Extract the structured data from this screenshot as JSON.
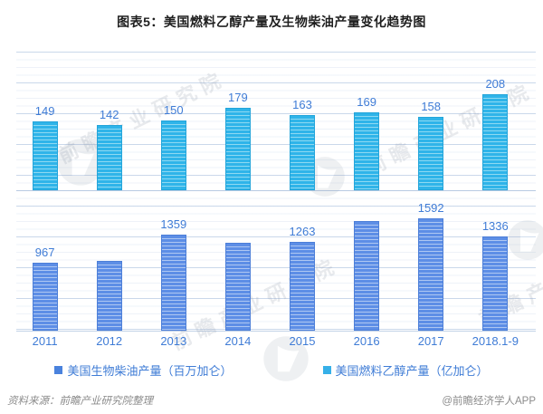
{
  "title": "图表5：美国燃料乙醇产量及生物柴油产量变化趋势图",
  "watermark": {
    "text": "前瞻产业研究院",
    "logo_name": "qianzhan-logo"
  },
  "legend": [
    {
      "label": "美国生物柴油产量（百万加仑）",
      "color": "#4a82dd"
    },
    {
      "label": "美国燃料乙醇产量（亿加仑）",
      "color": "#36b0e8"
    }
  ],
  "footer": {
    "source": "资料来源：前瞻产业研究院整理",
    "credit": "@前瞻经济学人APP"
  },
  "chart_data": {
    "type": "bar",
    "title": "图表5：美国燃料乙醇产量及生物柴油产量变化趋势图",
    "categories": [
      "2011",
      "2012",
      "2013",
      "2014",
      "2015",
      "2016",
      "2017",
      "2018.1-9"
    ],
    "series": [
      {
        "name": "美国燃料乙醇产量（亿加仑）",
        "panel": "top",
        "unit": "亿加仑",
        "values": [
          149,
          142,
          150,
          179,
          163,
          169,
          158,
          208
        ],
        "labels": [
          "149",
          "142",
          "150",
          "179",
          "163",
          "169",
          "158",
          "208"
        ],
        "ylim": [
          0,
          300
        ],
        "color": "#2fb4e9",
        "stripe_color": "#8ed9f2",
        "border_color": "#24a5da"
      },
      {
        "name": "美国生物柴油产量（百万加仑）",
        "panel": "bottom",
        "unit": "百万加仑",
        "values": [
          967,
          995,
          1359,
          1245,
          1263,
          1560,
          1592,
          1336
        ],
        "labels": [
          "967",
          "",
          "1359",
          "",
          "1263",
          "",
          "1592",
          "1336"
        ],
        "note": "unlabeled bars (2012, 2014, 2016) estimated from bar heights",
        "ylim": [
          0,
          2000
        ],
        "color": "#5d8ee6",
        "stripe_color": "#aec7f2",
        "border_color": "#4d7fd8"
      }
    ],
    "label_color": "#3f7cd6",
    "xlabel": "",
    "ylabel": "",
    "grid": true,
    "legend_position": "bottom"
  }
}
